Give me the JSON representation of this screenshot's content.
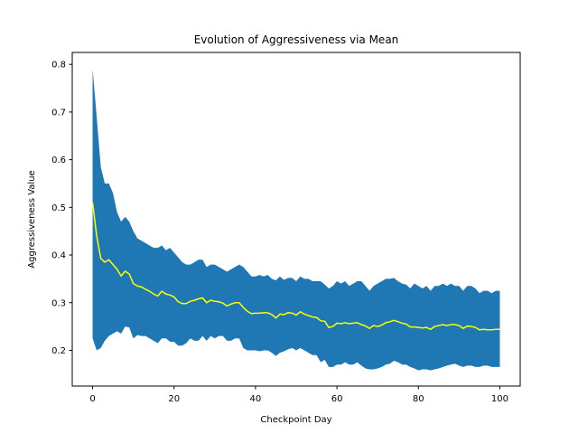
{
  "chart_data": {
    "type": "area",
    "title": "Evolution of Aggressiveness via Mean",
    "xlabel": "Checkpoint Day",
    "ylabel": "Aggressiveness Value",
    "xlim": [
      -5,
      105
    ],
    "ylim": [
      0.125,
      0.825
    ],
    "xticks": [
      0,
      20,
      40,
      60,
      80,
      100
    ],
    "yticks": [
      0.2,
      0.3,
      0.4,
      0.5,
      0.6,
      0.7,
      0.8
    ],
    "grid": false,
    "legend": "none",
    "colors": {
      "band": "#1f77b4",
      "mean": "#ffff00",
      "frame": "#000000"
    },
    "x": [
      0,
      1,
      2,
      3,
      4,
      5,
      6,
      7,
      8,
      9,
      10,
      11,
      12,
      13,
      14,
      15,
      16,
      17,
      18,
      19,
      20,
      21,
      22,
      23,
      24,
      25,
      26,
      27,
      28,
      29,
      30,
      31,
      32,
      33,
      34,
      35,
      36,
      37,
      38,
      39,
      40,
      41,
      42,
      43,
      44,
      45,
      46,
      47,
      48,
      49,
      50,
      51,
      52,
      53,
      54,
      55,
      56,
      57,
      58,
      59,
      60,
      61,
      62,
      63,
      64,
      65,
      66,
      67,
      68,
      69,
      70,
      71,
      72,
      73,
      74,
      75,
      76,
      77,
      78,
      79,
      80,
      81,
      82,
      83,
      84,
      85,
      86,
      87,
      88,
      89,
      90,
      91,
      92,
      93,
      94,
      95,
      96,
      97,
      98,
      99,
      100
    ],
    "series": [
      {
        "role": "mean",
        "values": [
          0.51,
          0.44,
          0.393,
          0.385,
          0.39,
          0.38,
          0.37,
          0.356,
          0.366,
          0.36,
          0.34,
          0.335,
          0.333,
          0.328,
          0.324,
          0.318,
          0.314,
          0.324,
          0.318,
          0.316,
          0.312,
          0.302,
          0.298,
          0.298,
          0.303,
          0.305,
          0.308,
          0.31,
          0.3,
          0.305,
          0.303,
          0.302,
          0.299,
          0.293,
          0.297,
          0.3,
          0.3,
          0.29,
          0.282,
          0.277,
          0.278,
          0.278,
          0.279,
          0.279,
          0.275,
          0.268,
          0.276,
          0.275,
          0.279,
          0.278,
          0.274,
          0.281,
          0.276,
          0.273,
          0.27,
          0.269,
          0.262,
          0.261,
          0.248,
          0.25,
          0.257,
          0.256,
          0.258,
          0.256,
          0.257,
          0.258,
          0.254,
          0.251,
          0.246,
          0.252,
          0.25,
          0.253,
          0.258,
          0.26,
          0.263,
          0.26,
          0.257,
          0.255,
          0.249,
          0.249,
          0.248,
          0.247,
          0.248,
          0.244,
          0.25,
          0.252,
          0.254,
          0.252,
          0.254,
          0.254,
          0.252,
          0.246,
          0.251,
          0.25,
          0.248,
          0.243,
          0.244,
          0.243,
          0.243,
          0.244,
          0.244
        ]
      },
      {
        "role": "upper",
        "values": [
          0.79,
          0.69,
          0.585,
          0.55,
          0.55,
          0.53,
          0.49,
          0.47,
          0.48,
          0.47,
          0.45,
          0.435,
          0.43,
          0.425,
          0.42,
          0.415,
          0.415,
          0.42,
          0.41,
          0.415,
          0.405,
          0.395,
          0.385,
          0.38,
          0.38,
          0.385,
          0.39,
          0.39,
          0.375,
          0.38,
          0.38,
          0.375,
          0.37,
          0.365,
          0.37,
          0.375,
          0.38,
          0.375,
          0.365,
          0.355,
          0.355,
          0.358,
          0.355,
          0.358,
          0.35,
          0.347,
          0.355,
          0.348,
          0.352,
          0.352,
          0.345,
          0.355,
          0.35,
          0.35,
          0.345,
          0.345,
          0.345,
          0.338,
          0.33,
          0.335,
          0.345,
          0.34,
          0.345,
          0.335,
          0.34,
          0.345,
          0.345,
          0.335,
          0.325,
          0.335,
          0.34,
          0.345,
          0.35,
          0.35,
          0.352,
          0.345,
          0.34,
          0.338,
          0.33,
          0.34,
          0.335,
          0.33,
          0.335,
          0.325,
          0.335,
          0.335,
          0.34,
          0.335,
          0.34,
          0.335,
          0.335,
          0.325,
          0.335,
          0.335,
          0.33,
          0.32,
          0.325,
          0.325,
          0.32,
          0.325,
          0.325
        ]
      },
      {
        "role": "lower",
        "values": [
          0.225,
          0.2,
          0.205,
          0.22,
          0.23,
          0.235,
          0.24,
          0.235,
          0.25,
          0.248,
          0.225,
          0.232,
          0.23,
          0.23,
          0.225,
          0.22,
          0.215,
          0.225,
          0.225,
          0.218,
          0.218,
          0.21,
          0.21,
          0.215,
          0.225,
          0.22,
          0.22,
          0.23,
          0.22,
          0.23,
          0.225,
          0.23,
          0.23,
          0.22,
          0.22,
          0.225,
          0.225,
          0.205,
          0.2,
          0.2,
          0.2,
          0.198,
          0.2,
          0.2,
          0.195,
          0.188,
          0.195,
          0.198,
          0.202,
          0.205,
          0.2,
          0.205,
          0.2,
          0.195,
          0.19,
          0.19,
          0.175,
          0.18,
          0.165,
          0.165,
          0.17,
          0.17,
          0.175,
          0.17,
          0.17,
          0.175,
          0.168,
          0.162,
          0.16,
          0.16,
          0.162,
          0.165,
          0.17,
          0.172,
          0.178,
          0.175,
          0.17,
          0.17,
          0.165,
          0.162,
          0.158,
          0.16,
          0.16,
          0.158,
          0.16,
          0.162,
          0.165,
          0.168,
          0.17,
          0.172,
          0.168,
          0.165,
          0.168,
          0.168,
          0.165,
          0.165,
          0.168,
          0.168,
          0.165,
          0.165,
          0.165
        ]
      }
    ]
  }
}
